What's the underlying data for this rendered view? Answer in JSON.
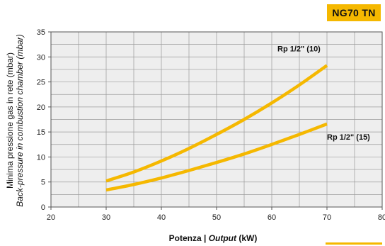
{
  "badge": {
    "label": "NG70 TN"
  },
  "colors": {
    "accent": "#f5b800",
    "series": "#f5b800",
    "grid": "#9a9a9a",
    "plot_bg": "#eeeeee"
  },
  "chart_data": {
    "type": "line",
    "title": "",
    "xlabel_plain": "Potenza | ",
    "xlabel_italic": "Output",
    "xlabel_unit": " (kW)",
    "ylabel_line1": "Minima pressione gas in rete (mbar)",
    "ylabel_line2": "Back-pressure in combustion chamber (mbar)",
    "xlim": [
      20,
      80
    ],
    "ylim": [
      0,
      35
    ],
    "x_ticks": [
      20,
      30,
      40,
      50,
      60,
      70,
      80
    ],
    "y_ticks": [
      0,
      5,
      10,
      15,
      20,
      25,
      30,
      35
    ],
    "x_minor_step": 5,
    "y_minor_step": 2.5,
    "grid": true,
    "series": [
      {
        "name": "Rp 1/2\" (10)",
        "x": [
          30,
          35,
          40,
          45,
          50,
          55,
          60,
          65,
          70
        ],
        "y": [
          5.2,
          7.0,
          9.2,
          11.7,
          14.5,
          17.5,
          20.8,
          24.4,
          28.3
        ]
      },
      {
        "name": "Rp 1/2\" (15)",
        "x": [
          30,
          35,
          40,
          45,
          50,
          55,
          60,
          65,
          70
        ],
        "y": [
          3.4,
          4.5,
          5.8,
          7.3,
          8.9,
          10.6,
          12.5,
          14.5,
          16.6
        ]
      }
    ]
  }
}
